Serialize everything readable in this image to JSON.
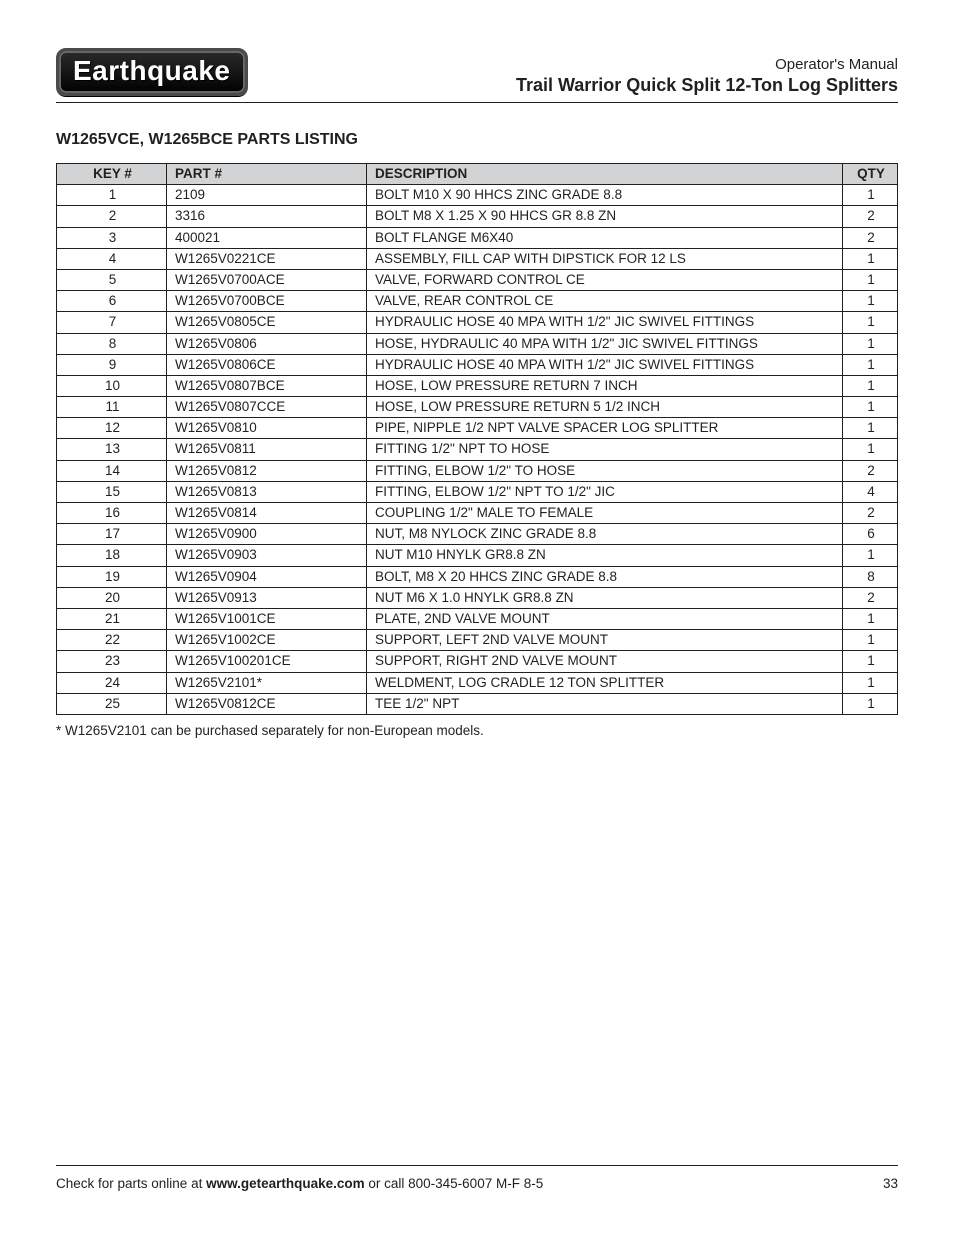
{
  "header": {
    "logo_text": "Earthquake",
    "manual_line": "Operator's Manual",
    "product_line": "Trail Warrior Quick Split 12-Ton Log Splitters"
  },
  "section_title": "W1265VCE, W1265BCE PARTS LISTING",
  "table": {
    "columns": [
      "KEY #",
      "PART #",
      "DESCRIPTION",
      "QTY"
    ],
    "rows": [
      [
        "1",
        "2109",
        "BOLT M10 X 90 HHCS ZINC GRADE 8.8",
        "1"
      ],
      [
        "2",
        "3316",
        "BOLT M8 X 1.25 X 90 HHCS GR 8.8 ZN",
        "2"
      ],
      [
        "3",
        "400021",
        "BOLT FLANGE M6X40",
        "2"
      ],
      [
        "4",
        "W1265V0221CE",
        "ASSEMBLY, FILL CAP WITH DIPSTICK FOR 12 LS",
        "1"
      ],
      [
        "5",
        "W1265V0700ACE",
        "VALVE, FORWARD CONTROL CE",
        "1"
      ],
      [
        "6",
        "W1265V0700BCE",
        "VALVE, REAR CONTROL CE",
        "1"
      ],
      [
        "7",
        "W1265V0805CE",
        "HYDRAULIC HOSE 40 MPA WITH 1/2\" JIC SWIVEL FITTINGS",
        "1"
      ],
      [
        "8",
        "W1265V0806",
        "HOSE, HYDRAULIC 40 MPA WITH 1/2\" JIC SWIVEL FITTINGS",
        "1"
      ],
      [
        "9",
        "W1265V0806CE",
        "HYDRAULIC HOSE 40 MPA WITH 1/2\" JIC SWIVEL FITTINGS",
        "1"
      ],
      [
        "10",
        "W1265V0807BCE",
        "HOSE, LOW PRESSURE RETURN 7 INCH",
        "1"
      ],
      [
        "11",
        "W1265V0807CCE",
        "HOSE, LOW PRESSURE RETURN 5 1/2 INCH",
        "1"
      ],
      [
        "12",
        "W1265V0810",
        "PIPE, NIPPLE 1/2 NPT VALVE SPACER LOG SPLITTER",
        "1"
      ],
      [
        "13",
        "W1265V0811",
        "FITTING 1/2\" NPT TO HOSE",
        "1"
      ],
      [
        "14",
        "W1265V0812",
        "FITTING, ELBOW 1/2\" TO HOSE",
        "2"
      ],
      [
        "15",
        "W1265V0813",
        "FITTING, ELBOW 1/2\" NPT TO 1/2\" JIC",
        "4"
      ],
      [
        "16",
        "W1265V0814",
        "COUPLING 1/2\" MALE TO FEMALE",
        "2"
      ],
      [
        "17",
        "W1265V0900",
        "NUT, M8 NYLOCK ZINC GRADE 8.8",
        "6"
      ],
      [
        "18",
        "W1265V0903",
        "NUT M10 HNYLK GR8.8 ZN",
        "1"
      ],
      [
        "19",
        "W1265V0904",
        "BOLT, M8 X 20 HHCS ZINC GRADE 8.8",
        "8"
      ],
      [
        "20",
        "W1265V0913",
        "NUT M6 X 1.0 HNYLK GR8.8 ZN",
        "2"
      ],
      [
        "21",
        "W1265V1001CE",
        "PLATE, 2ND VALVE MOUNT",
        "1"
      ],
      [
        "22",
        "W1265V1002CE",
        "SUPPORT, LEFT 2ND VALVE MOUNT",
        "1"
      ],
      [
        "23",
        "W1265V100201CE",
        "SUPPORT, RIGHT 2ND VALVE MOUNT",
        "1"
      ],
      [
        "24",
        "W1265V2101*",
        "WELDMENT, LOG CRADLE 12 TON SPLITTER",
        "1"
      ],
      [
        "25",
        "W1265V0812CE",
        "TEE 1/2\" NPT",
        "1"
      ]
    ]
  },
  "footnote": "* W1265V2101 can be purchased separately for non-European models.",
  "footer": {
    "prefix": "Check for parts online at ",
    "site": "www.getearthquake.com",
    "suffix": " or call 800-345-6007 M-F 8-5",
    "page": "33"
  }
}
